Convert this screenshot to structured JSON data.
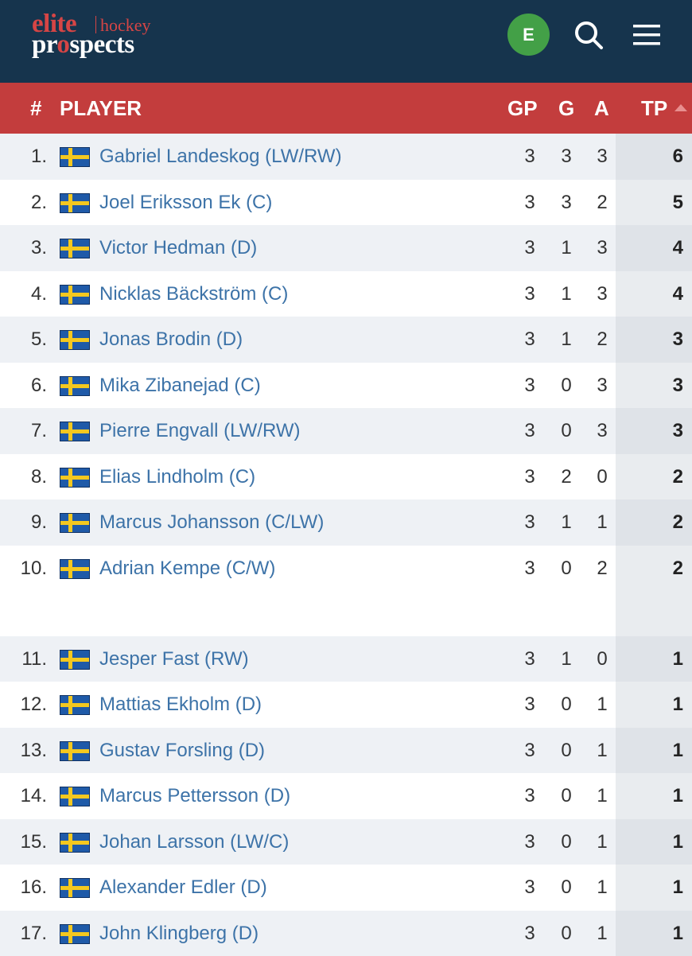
{
  "header": {
    "logo": {
      "word1": "elite",
      "word2": "hockey",
      "word3a": "pr",
      "word3b": "o",
      "word3c": "spects"
    },
    "avatar_letter": "E",
    "avatar_color": "#43a047",
    "icons": [
      "search-icon",
      "menu-icon"
    ],
    "bar_color": "#16344d"
  },
  "table": {
    "header_color": "#c33d3d",
    "columns": {
      "num": "#",
      "player": "PLAYER",
      "gp": "GP",
      "g": "G",
      "a": "A",
      "tp": "TP"
    },
    "sorted_by": "TP",
    "rows": [
      {
        "rank": "1.",
        "flag": "sweden-flag",
        "name": "Gabriel Landeskog (LW/RW)",
        "gp": "3",
        "g": "3",
        "a": "3",
        "tp": "6"
      },
      {
        "rank": "2.",
        "flag": "sweden-flag",
        "name": "Joel Eriksson Ek (C)",
        "gp": "3",
        "g": "3",
        "a": "2",
        "tp": "5"
      },
      {
        "rank": "3.",
        "flag": "sweden-flag",
        "name": "Victor Hedman (D)",
        "gp": "3",
        "g": "1",
        "a": "3",
        "tp": "4"
      },
      {
        "rank": "4.",
        "flag": "sweden-flag",
        "name": "Nicklas Bäckström (C)",
        "gp": "3",
        "g": "1",
        "a": "3",
        "tp": "4"
      },
      {
        "rank": "5.",
        "flag": "sweden-flag",
        "name": "Jonas Brodin (D)",
        "gp": "3",
        "g": "1",
        "a": "2",
        "tp": "3"
      },
      {
        "rank": "6.",
        "flag": "sweden-flag",
        "name": "Mika Zibanejad (C)",
        "gp": "3",
        "g": "0",
        "a": "3",
        "tp": "3"
      },
      {
        "rank": "7.",
        "flag": "sweden-flag",
        "name": "Pierre Engvall (LW/RW)",
        "gp": "3",
        "g": "0",
        "a": "3",
        "tp": "3"
      },
      {
        "rank": "8.",
        "flag": "sweden-flag",
        "name": "Elias Lindholm (C)",
        "gp": "3",
        "g": "2",
        "a": "0",
        "tp": "2"
      },
      {
        "rank": "9.",
        "flag": "sweden-flag",
        "name": "Marcus Johansson (C/LW)",
        "gp": "3",
        "g": "1",
        "a": "1",
        "tp": "2"
      },
      {
        "rank": "10.",
        "flag": "sweden-flag",
        "name": "Adrian Kempe (C/W)",
        "gp": "3",
        "g": "0",
        "a": "2",
        "tp": "2"
      },
      {
        "rank": "11.",
        "flag": "sweden-flag",
        "name": "Jesper Fast (RW)",
        "gp": "3",
        "g": "1",
        "a": "0",
        "tp": "1"
      },
      {
        "rank": "12.",
        "flag": "sweden-flag",
        "name": "Mattias Ekholm (D)",
        "gp": "3",
        "g": "0",
        "a": "1",
        "tp": "1"
      },
      {
        "rank": "13.",
        "flag": "sweden-flag",
        "name": "Gustav Forsling (D)",
        "gp": "3",
        "g": "0",
        "a": "1",
        "tp": "1"
      },
      {
        "rank": "14.",
        "flag": "sweden-flag",
        "name": "Marcus Pettersson (D)",
        "gp": "3",
        "g": "0",
        "a": "1",
        "tp": "1"
      },
      {
        "rank": "15.",
        "flag": "sweden-flag",
        "name": "Johan Larsson (LW/C)",
        "gp": "3",
        "g": "0",
        "a": "1",
        "tp": "1"
      },
      {
        "rank": "16.",
        "flag": "sweden-flag",
        "name": "Alexander Edler (D)",
        "gp": "3",
        "g": "0",
        "a": "1",
        "tp": "1"
      },
      {
        "rank": "17.",
        "flag": "sweden-flag",
        "name": "John Klingberg (D)",
        "gp": "3",
        "g": "0",
        "a": "1",
        "tp": "1"
      }
    ]
  }
}
